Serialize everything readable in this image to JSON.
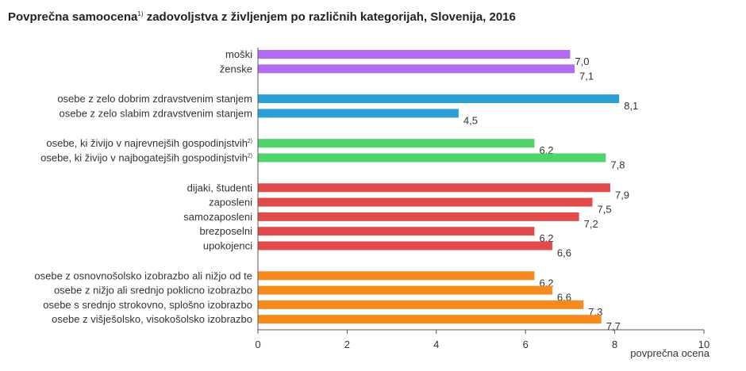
{
  "chart_data": {
    "type": "bar",
    "orientation": "horizontal",
    "title": "Povprečna samoocena",
    "title_sup": "1)",
    "title_rest": " zadovoljstva z življenjem po različnih kategorijah, Slovenija, 2016",
    "xlabel": "povprečna ocena",
    "xlim": [
      0,
      10
    ],
    "xticks": [
      "0",
      "2",
      "4",
      "6",
      "8",
      "10"
    ],
    "grid": false,
    "groups": [
      {
        "color": "#b36bf2",
        "items": [
          {
            "label": "moški",
            "sup": "",
            "value": 7.0,
            "value_label": "7,0"
          },
          {
            "label": "ženske",
            "sup": "",
            "value": 7.1,
            "value_label": "7,1"
          }
        ]
      },
      {
        "color": "#2b9fd3",
        "items": [
          {
            "label": "osebe z zelo dobrim zdravstvenim stanjem",
            "sup": "",
            "value": 8.1,
            "value_label": "8,1"
          },
          {
            "label": "osebe z zelo slabim zdravstvenim stanjem",
            "sup": "",
            "value": 4.5,
            "value_label": "4,5"
          }
        ]
      },
      {
        "color": "#4fd36a",
        "items": [
          {
            "label": "osebe, ki živijo v najrevnejših gospodinjstvih",
            "sup": "2)",
            "value": 6.2,
            "value_label": "6,2"
          },
          {
            "label": "osebe, ki živijo v najbogatejših gospodinjstvih",
            "sup": "2)",
            "value": 7.8,
            "value_label": "7,8"
          }
        ]
      },
      {
        "color": "#e14b4b",
        "items": [
          {
            "label": "dijaki, študenti",
            "sup": "",
            "value": 7.9,
            "value_label": "7,9"
          },
          {
            "label": "zaposleni",
            "sup": "",
            "value": 7.5,
            "value_label": "7,5"
          },
          {
            "label": "samozaposleni",
            "sup": "",
            "value": 7.2,
            "value_label": "7,2"
          },
          {
            "label": "brezposelni",
            "sup": "",
            "value": 6.2,
            "value_label": "6,2"
          },
          {
            "label": "upokojenci",
            "sup": "",
            "value": 6.6,
            "value_label": "6,6"
          }
        ]
      },
      {
        "color": "#f78a1f",
        "items": [
          {
            "label": "osebe z osnovnošolsko  izobrazbo ali nižjo od te",
            "sup": "",
            "value": 6.2,
            "value_label": "6,2"
          },
          {
            "label": "osebe z nižjo ali srednjo poklicno izobrazbo",
            "sup": "",
            "value": 6.6,
            "value_label": "6,6"
          },
          {
            "label": "osebe s srednjo strokovno, splošno izobrazbo",
            "sup": "",
            "value": 7.3,
            "value_label": "7,3"
          },
          {
            "label": "osebe z višješolsko, visokošolsko izobrazbo",
            "sup": "",
            "value": 7.7,
            "value_label": "7,7"
          }
        ]
      }
    ]
  }
}
